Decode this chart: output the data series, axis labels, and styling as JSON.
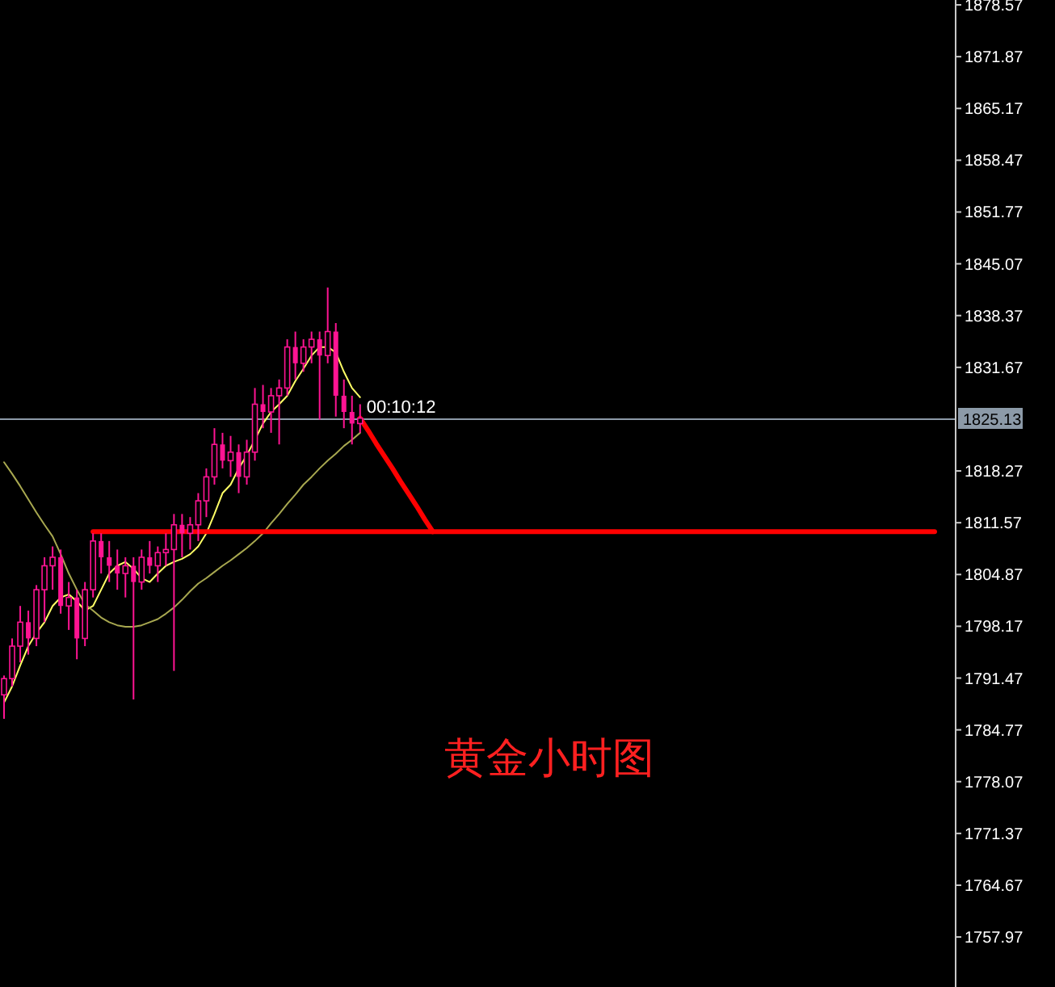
{
  "chart_data": {
    "type": "candlestick",
    "categories": [
      null,
      null,
      null,
      null,
      null,
      null,
      null,
      null,
      null,
      null,
      null,
      null,
      null,
      null,
      null,
      null,
      null,
      null,
      null,
      null,
      null,
      null,
      null,
      null,
      null,
      null,
      null,
      null,
      null,
      null,
      null,
      null,
      null,
      null,
      null,
      null,
      null,
      null,
      null,
      null,
      null,
      null,
      null,
      null,
      null,
      null,
      null,
      null,
      null,
      null,
      null,
      null,
      null,
      null,
      null,
      null,
      null,
      null,
      null,
      null,
      null,
      null,
      null,
      null,
      null,
      null,
      null,
      null,
      null,
      null,
      null,
      null,
      null,
      null,
      null,
      null,
      null,
      null,
      null,
      null,
      null,
      null,
      null,
      null,
      null,
      null,
      null,
      null,
      null,
      null,
      null,
      null,
      null,
      null,
      null,
      null,
      null,
      null,
      null,
      null,
      null,
      null,
      null,
      null,
      null,
      null,
      null,
      null,
      null,
      null,
      null,
      null,
      null,
      null,
      null,
      null,
      null,
      null
    ],
    "color": "#ff1493",
    "ohlc": [
      [
        1789.3,
        1791.8,
        1786.2,
        1791.4
      ],
      [
        1791.4,
        1796.6,
        1790.4,
        1795.6
      ],
      [
        1795.6,
        1800.8,
        1793.5,
        1798.7
      ],
      [
        1798.7,
        1800.2,
        1794.5,
        1796.6
      ],
      [
        1796.6,
        1803.5,
        1795.6,
        1802.9
      ],
      [
        1802.9,
        1807.1,
        1798.7,
        1806.0
      ],
      [
        1806.0,
        1808.5,
        1802.9,
        1807.1
      ],
      [
        1807.1,
        1808.1,
        1799.8,
        1800.8
      ],
      [
        1800.8,
        1803.9,
        1797.7,
        1801.9
      ],
      [
        1801.9,
        1802.9,
        1793.9,
        1796.6
      ],
      [
        1796.6,
        1803.9,
        1795.6,
        1802.9
      ],
      [
        1802.9,
        1810.2,
        1801.9,
        1809.2
      ],
      [
        1809.2,
        1810.2,
        1805.0,
        1807.1
      ],
      [
        1807.1,
        1809.2,
        1803.9,
        1806.0
      ],
      [
        1806.0,
        1808.1,
        1802.9,
        1805.0
      ],
      [
        1805.0,
        1807.1,
        1801.9,
        1806.0
      ],
      [
        1806.0,
        1807.1,
        1788.7,
        1803.9
      ],
      [
        1803.9,
        1808.1,
        1802.9,
        1807.1
      ],
      [
        1807.1,
        1809.2,
        1805.0,
        1806.0
      ],
      [
        1806.0,
        1808.5,
        1803.9,
        1807.7
      ],
      [
        1807.7,
        1810.2,
        1806.0,
        1808.1
      ],
      [
        1808.1,
        1812.7,
        1792.4,
        1811.3
      ],
      [
        1811.3,
        1812.7,
        1807.1,
        1810.2
      ],
      [
        1810.2,
        1812.3,
        1808.1,
        1811.3
      ],
      [
        1811.3,
        1815.4,
        1809.2,
        1814.4
      ],
      [
        1814.4,
        1818.6,
        1812.3,
        1817.5
      ],
      [
        1817.5,
        1823.8,
        1816.5,
        1821.7
      ],
      [
        1821.7,
        1823.2,
        1818.6,
        1819.6
      ],
      [
        1819.6,
        1822.8,
        1817.5,
        1820.7
      ],
      [
        1820.7,
        1821.7,
        1815.4,
        1817.5
      ],
      [
        1817.5,
        1822.3,
        1816.5,
        1820.7
      ],
      [
        1820.7,
        1829.0,
        1819.6,
        1826.9
      ],
      [
        1826.9,
        1829.4,
        1823.8,
        1825.9
      ],
      [
        1825.9,
        1829.0,
        1823.2,
        1828.0
      ],
      [
        1828.0,
        1830.1,
        1821.7,
        1829.0
      ],
      [
        1829.0,
        1835.3,
        1828.0,
        1834.3
      ],
      [
        1834.3,
        1836.3,
        1830.1,
        1832.2
      ],
      [
        1832.2,
        1835.3,
        1831.1,
        1834.3
      ],
      [
        1834.3,
        1836.3,
        1832.2,
        1835.3
      ],
      [
        1835.3,
        1836.3,
        1824.9,
        1833.2
      ],
      [
        1833.2,
        1842.0,
        1832.2,
        1836.3
      ],
      [
        1836.3,
        1837.4,
        1825.3,
        1828.0
      ],
      [
        1828.0,
        1830.1,
        1823.8,
        1825.9
      ],
      [
        1825.9,
        1828.0,
        1821.7,
        1824.4
      ],
      [
        1824.4,
        1826.9,
        1823.2,
        1825.1
      ],
      null,
      null,
      null,
      null,
      null,
      null,
      null,
      null,
      null,
      null,
      null,
      null,
      null,
      null,
      null,
      null,
      null,
      null,
      null,
      null,
      null,
      null,
      null,
      null,
      null,
      null,
      null,
      null,
      null,
      null,
      null,
      null,
      null,
      null,
      null,
      null,
      null,
      null,
      null,
      null,
      null,
      null,
      null,
      null,
      null,
      null,
      null,
      null,
      null,
      null,
      null,
      null,
      null,
      null,
      null,
      null,
      null,
      null,
      null,
      null,
      null,
      null,
      null,
      null,
      null,
      null,
      null,
      null,
      null,
      null,
      null,
      null,
      null
    ],
    "series": [
      {
        "type": "line",
        "color": "#ffff66",
        "values": [
          1788.3,
          1790.4,
          1793.1,
          1795.6,
          1797.3,
          1798.7,
          1800.8,
          1801.9,
          1802.3,
          1801.4,
          1800.2,
          1800.8,
          1802.9,
          1805.0,
          1806.0,
          1806.5,
          1805.6,
          1804.4,
          1803.9,
          1805.0,
          1806.0,
          1806.5,
          1806.9,
          1807.5,
          1808.5,
          1810.2,
          1812.7,
          1815.4,
          1816.5,
          1818.6,
          1820.3,
          1822.3,
          1824.4,
          1825.9,
          1826.9,
          1828.0,
          1829.9,
          1831.5,
          1833.2,
          1834.3,
          1834.3,
          1833.6,
          1831.1,
          1829.0,
          1827.8,
          null,
          null,
          null,
          null,
          null,
          null,
          null,
          null,
          null,
          null,
          null,
          null,
          null,
          null,
          null,
          null,
          null,
          null,
          null,
          null,
          null,
          null,
          null,
          null,
          null,
          null,
          null,
          null,
          null,
          null,
          null,
          null,
          null,
          null,
          null,
          null,
          null,
          null,
          null,
          null,
          null,
          null,
          null,
          null,
          null,
          null,
          null,
          null,
          null,
          null,
          null,
          null,
          null,
          null,
          null,
          null,
          null,
          null,
          null,
          null,
          null,
          null,
          null,
          null,
          null,
          null,
          null,
          null,
          null,
          null,
          null,
          null,
          null
        ]
      },
      {
        "type": "line",
        "color": "#a8a850",
        "values": [
          1819.4,
          1817.9,
          1816.3,
          1814.6,
          1812.9,
          1811.3,
          1809.8,
          1807.5,
          1805.0,
          1802.9,
          1801.0,
          1800.2,
          1799.3,
          1798.7,
          1798.3,
          1798.1,
          1798.1,
          1798.3,
          1798.7,
          1799.1,
          1799.8,
          1800.6,
          1801.6,
          1802.7,
          1803.7,
          1804.4,
          1805.2,
          1806.0,
          1806.7,
          1807.5,
          1808.3,
          1809.2,
          1810.2,
          1811.5,
          1812.7,
          1814.0,
          1815.2,
          1816.5,
          1817.5,
          1818.6,
          1819.6,
          1820.5,
          1821.5,
          1822.3,
          1823.2,
          null,
          null,
          null,
          null,
          null,
          null,
          null,
          null,
          null,
          null,
          null,
          null,
          null,
          null,
          null,
          null,
          null,
          null,
          null,
          null,
          null,
          null,
          null,
          null,
          null,
          null,
          null,
          null,
          null,
          null,
          null,
          null,
          null,
          null,
          null,
          null,
          null,
          null,
          null,
          null,
          null,
          null,
          null,
          null,
          null,
          null,
          null,
          null,
          null,
          null,
          null,
          null,
          null,
          null,
          null,
          null,
          null,
          null,
          null,
          null,
          null,
          null,
          null,
          null,
          null,
          null,
          null,
          null,
          null,
          null,
          null,
          null,
          null
        ]
      },
      {
        "type": "line",
        "color": "#ff0000",
        "values": [
          null,
          null,
          null,
          null,
          null,
          null,
          null,
          null,
          null,
          null,
          null,
          null,
          null,
          null,
          null,
          null,
          null,
          null,
          null,
          null,
          null,
          null,
          null,
          null,
          null,
          null,
          null,
          null,
          null,
          null,
          null,
          null,
          null,
          null,
          null,
          null,
          null,
          null,
          null,
          null,
          null,
          null,
          null,
          null,
          1825.1,
          1823.5,
          1821.8,
          1820.2,
          1818.6,
          1816.9,
          1815.3,
          1813.7,
          1812.0,
          1810.4,
          null,
          null,
          null,
          null,
          null,
          null,
          null,
          null,
          null,
          null,
          null,
          null,
          null,
          null,
          null,
          null,
          null,
          null,
          null,
          null,
          null,
          null,
          null,
          null,
          null,
          null,
          null,
          null,
          null,
          null,
          null,
          null,
          null,
          null,
          null,
          null,
          null,
          null,
          null,
          null,
          null,
          null,
          null,
          null,
          null,
          null,
          null,
          null,
          null,
          null,
          null,
          null,
          null,
          null,
          null,
          null,
          null,
          null,
          null,
          null,
          null,
          null,
          null,
          null
        ]
      },
      {
        "type": "line",
        "color": "#ff0000",
        "values": [
          null,
          null,
          null,
          null,
          null,
          null,
          null,
          null,
          null,
          null,
          null,
          1810.4,
          1810.4,
          1810.4,
          1810.4,
          1810.4,
          1810.4,
          1810.4,
          1810.4,
          1810.4,
          1810.4,
          1810.4,
          1810.4,
          1810.4,
          1810.4,
          1810.4,
          1810.4,
          1810.4,
          1810.4,
          1810.4,
          1810.4,
          1810.4,
          1810.4,
          1810.4,
          1810.4,
          1810.4,
          1810.4,
          1810.4,
          1810.4,
          1810.4,
          1810.4,
          1810.4,
          1810.4,
          1810.4,
          1810.4,
          1810.4,
          1810.4,
          1810.4,
          1810.4,
          1810.4,
          1810.4,
          1810.4,
          1810.4,
          1810.4,
          1810.4,
          1810.4,
          1810.4,
          1810.4,
          1810.4,
          1810.4,
          1810.4,
          1810.4,
          1810.4,
          1810.4,
          1810.4,
          1810.4,
          1810.4,
          1810.4,
          1810.4,
          1810.4,
          1810.4,
          1810.4,
          1810.4,
          1810.4,
          1810.4,
          1810.4,
          1810.4,
          1810.4,
          1810.4,
          1810.4,
          1810.4,
          1810.4,
          1810.4,
          1810.4,
          1810.4,
          1810.4,
          1810.4,
          1810.4,
          1810.4,
          1810.4,
          1810.4,
          1810.4,
          1810.4,
          1810.4,
          1810.4,
          1810.4,
          1810.4,
          1810.4,
          1810.4,
          1810.4,
          1810.4,
          1810.4,
          1810.4,
          1810.4,
          1810.4,
          1810.4,
          1810.4,
          1810.4,
          1810.4,
          1810.4,
          1810.4,
          1810.4,
          1810.4,
          1810.4,
          1810.4,
          1810.4,
          null,
          null
        ]
      }
    ],
    "ylim": [
      1751.5,
      1879.2
    ],
    "yticks": [
      1878.57,
      1871.87,
      1865.17,
      1858.47,
      1851.77,
      1845.07,
      1838.37,
      1831.67,
      1818.27,
      1811.57,
      1804.87,
      1798.17,
      1791.47,
      1784.77,
      1778.07,
      1771.37,
      1764.67,
      1757.97
    ],
    "ref_lines": [
      {
        "axis": "y",
        "value": 1825.13,
        "label": "1825.13",
        "color": "#8c9aa8"
      }
    ],
    "annotations": [
      {
        "text": "00:10:12",
        "y": 1825.13
      },
      "黄金小时图"
    ]
  }
}
